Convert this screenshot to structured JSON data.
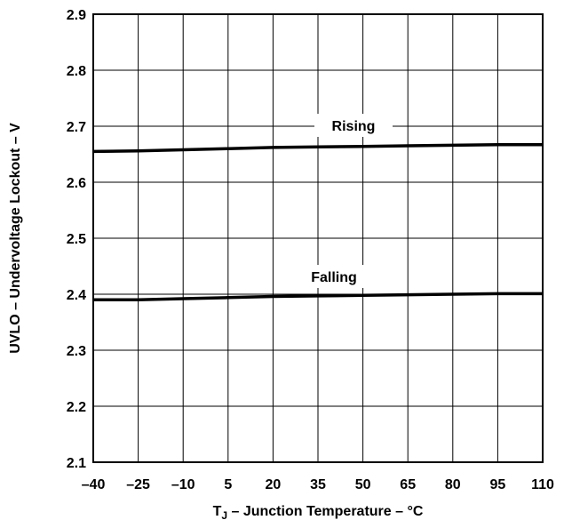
{
  "chart_data": {
    "type": "line",
    "xlabel_main": "T",
    "xlabel_sub": "J",
    "xlabel_rest": " – Junction Temperature – °C",
    "ylabel": "UVLO – Undervoltage Lockout – V",
    "x_ticks": [
      -40,
      -25,
      -10,
      5,
      20,
      35,
      50,
      65,
      80,
      95,
      110
    ],
    "x_tick_labels": [
      "–40",
      "–25",
      "–10",
      "5",
      "20",
      "35",
      "50",
      "65",
      "80",
      "95",
      "110"
    ],
    "y_ticks": [
      2.1,
      2.2,
      2.3,
      2.4,
      2.5,
      2.6,
      2.7,
      2.8,
      2.9
    ],
    "y_tick_labels": [
      "2.1",
      "2.2",
      "2.3",
      "2.4",
      "2.5",
      "2.6",
      "2.7",
      "2.8",
      "2.9"
    ],
    "xlim": [
      -40,
      110
    ],
    "ylim": [
      2.1,
      2.9
    ],
    "grid": true,
    "series": [
      {
        "name": "Rising",
        "x": [
          -40,
          -25,
          -10,
          5,
          20,
          35,
          50,
          65,
          80,
          95,
          110
        ],
        "y": [
          2.655,
          2.656,
          2.658,
          2.66,
          2.662,
          2.663,
          2.664,
          2.665,
          2.666,
          2.667,
          2.667
        ]
      },
      {
        "name": "Falling",
        "x": [
          -40,
          -25,
          -10,
          5,
          20,
          35,
          50,
          65,
          80,
          95,
          110
        ],
        "y": [
          2.39,
          2.39,
          2.392,
          2.394,
          2.396,
          2.397,
          2.398,
          2.399,
          2.4,
          2.401,
          2.401
        ]
      }
    ]
  }
}
